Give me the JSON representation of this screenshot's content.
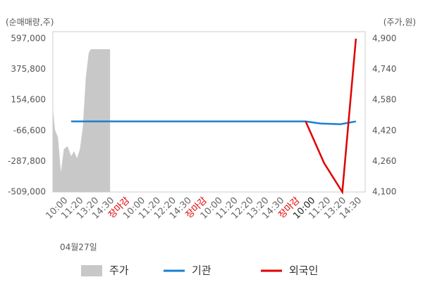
{
  "chart_data": {
    "type": "line",
    "y_label": "(순매매량,주)",
    "y2_label": "(주가,원)",
    "date_label": "04월27일",
    "categories": [
      "10:00",
      "11:20",
      "13:20",
      "14:30",
      "장마감",
      "10:00",
      "11:20",
      "12:20",
      "14:30",
      "장마감",
      "10:00",
      "11:20",
      "12:20",
      "13:20",
      "14:30",
      "장마감",
      "10:00",
      "11:20",
      "13:20",
      "14:30"
    ],
    "category_colors": [
      "#666",
      "#666",
      "#666",
      "#666",
      "#e00000",
      "#666",
      "#666",
      "#666",
      "#666",
      "#e00000",
      "#666",
      "#666",
      "#666",
      "#666",
      "#666",
      "#e00000",
      "#222",
      "#666",
      "#666",
      "#666"
    ],
    "xlim": [
      -0.6,
      19.6
    ],
    "ylim": [
      -509000,
      597000
    ],
    "yticks": [
      {
        "value": -509000,
        "label": "-509,000"
      },
      {
        "value": -287800,
        "label": "-287,800"
      },
      {
        "value": -66600,
        "label": "-66,600"
      },
      {
        "value": 154600,
        "label": "154,600"
      },
      {
        "value": 375800,
        "label": "375,800"
      },
      {
        "value": 597000,
        "label": "597,000"
      }
    ],
    "y2lim": [
      4100,
      4900
    ],
    "y2ticks": [
      {
        "value": 4100,
        "label": "4,100"
      },
      {
        "value": 4260,
        "label": "4,260"
      },
      {
        "value": 4420,
        "label": "4,420"
      },
      {
        "value": 4580,
        "label": "4,580"
      },
      {
        "value": 4740,
        "label": "4,740"
      },
      {
        "value": 4900,
        "label": "4,900"
      }
    ],
    "series": [
      {
        "name": "주가",
        "kind": "area",
        "axis": "y2",
        "color": "#c8c8c8",
        "x": [
          -0.6,
          -0.46,
          -0.27,
          -0.08,
          0.11,
          0.35,
          0.58,
          0.77,
          0.96,
          1.15,
          1.34,
          1.53,
          1.72,
          1.86,
          3.1
        ],
        "values": [
          4533,
          4423,
          4386,
          4203,
          4324,
          4339,
          4287,
          4313,
          4276,
          4324,
          4441,
          4698,
          4827,
          4845,
          4845
        ]
      },
      {
        "name": "기관",
        "kind": "line",
        "color": "#1a7fd0",
        "x": [
          0.58,
          15.75,
          16.7,
          18.0,
          19.0
        ],
        "values": [
          0,
          0,
          -15000,
          -20000,
          0
        ]
      },
      {
        "name": "외국인",
        "kind": "line",
        "color": "#e00000",
        "x": [
          15.75,
          16.94,
          18.12,
          19.0
        ],
        "values": [
          0,
          -300000,
          -509000,
          597000
        ]
      }
    ]
  }
}
